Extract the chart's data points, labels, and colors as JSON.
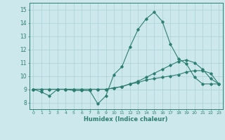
{
  "title": "",
  "xlabel": "Humidex (Indice chaleur)",
  "ylabel": "",
  "bg_color": "#cce8ec",
  "grid_color": "#aad0d6",
  "line_color": "#2d7e72",
  "xlim": [
    -0.5,
    23.5
  ],
  "ylim": [
    7.5,
    15.5
  ],
  "yticks": [
    8,
    9,
    10,
    11,
    12,
    13,
    14,
    15
  ],
  "xticks": [
    0,
    1,
    2,
    3,
    4,
    5,
    6,
    7,
    8,
    9,
    10,
    11,
    12,
    13,
    14,
    15,
    16,
    17,
    18,
    19,
    20,
    21,
    22,
    23
  ],
  "series": [
    [
      9.0,
      8.8,
      8.5,
      9.0,
      9.0,
      8.9,
      8.9,
      8.9,
      7.9,
      8.5,
      10.1,
      10.7,
      12.2,
      13.5,
      14.3,
      14.8,
      14.1,
      12.4,
      11.3,
      10.9,
      9.9,
      9.4,
      9.4,
      9.4
    ],
    [
      9.0,
      9.0,
      9.0,
      9.0,
      9.0,
      9.0,
      9.0,
      9.0,
      9.0,
      9.0,
      9.1,
      9.2,
      9.4,
      9.5,
      9.7,
      9.8,
      9.9,
      10.0,
      10.1,
      10.3,
      10.4,
      10.4,
      10.2,
      9.4
    ],
    [
      9.0,
      9.0,
      9.0,
      9.0,
      9.0,
      9.0,
      9.0,
      9.0,
      9.0,
      9.0,
      9.1,
      9.2,
      9.4,
      9.6,
      9.9,
      10.2,
      10.5,
      10.8,
      11.1,
      11.2,
      11.0,
      10.5,
      9.8,
      9.4
    ]
  ]
}
